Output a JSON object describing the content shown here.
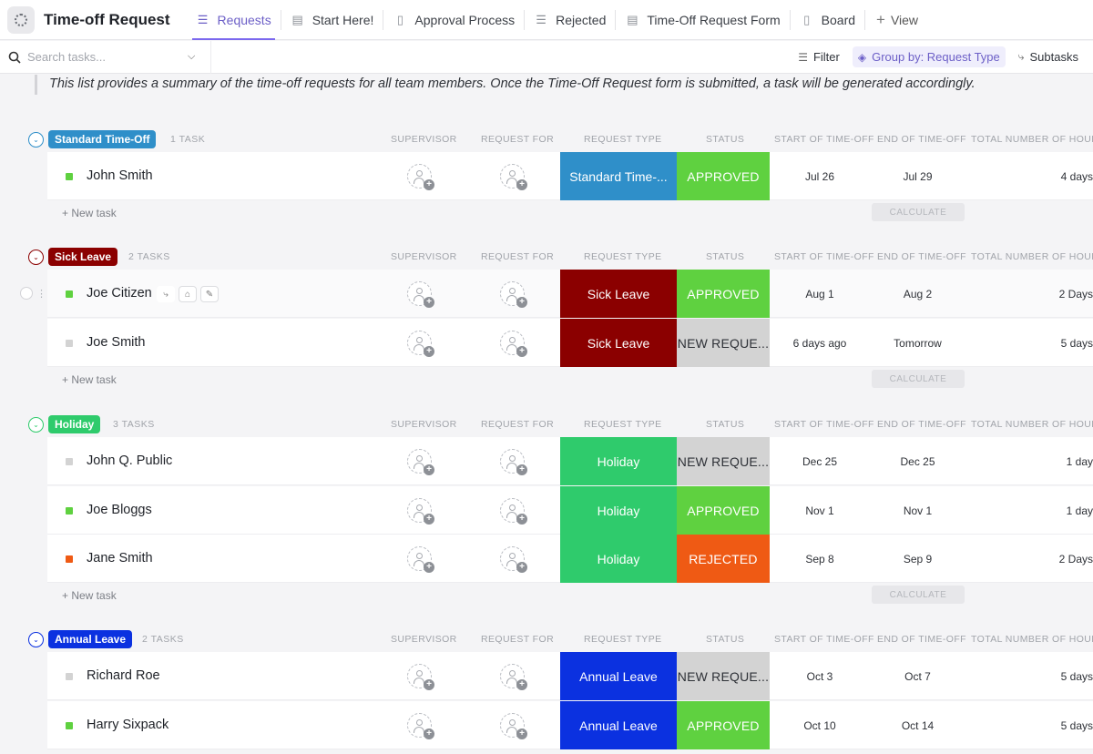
{
  "app": {
    "title": "Time-off Request"
  },
  "tabs": [
    {
      "label": "Requests",
      "icon": "list-icon",
      "active": true
    },
    {
      "label": "Start Here!",
      "icon": "doc-icon",
      "active": false
    },
    {
      "label": "Approval Process",
      "icon": "doc-icon",
      "active": false
    },
    {
      "label": "Rejected",
      "icon": "list-icon",
      "active": false
    },
    {
      "label": "Time-Off Request Form",
      "icon": "form-icon",
      "active": false
    },
    {
      "label": "Board",
      "icon": "board-icon",
      "active": false
    }
  ],
  "add_view_label": "View",
  "toolbar": {
    "search_placeholder": "Search tasks...",
    "filter_label": "Filter",
    "group_label": "Group by: Request Type",
    "subtasks_label": "Subtasks"
  },
  "description": "This list provides a summary of the time-off requests for all team members. Once the Time-Off Request form is submitted, a task will be generated accordingly.",
  "columns": {
    "supervisor": "SUPERVISOR",
    "request_for": "REQUEST FOR",
    "request_type": "REQUEST TYPE",
    "status": "STATUS",
    "start": "START OF TIME-OFF",
    "end": "END OF TIME-OFF",
    "total": "TOTAL NUMBER OF HOURS"
  },
  "new_task_label": "+ New task",
  "calculate_label": "CALCULATE",
  "colors": {
    "standard": "#2f8fc9",
    "sick": "#8b0000",
    "holiday": "#2fcb6c",
    "annual": "#0b31e0",
    "approved": "#5fd140",
    "new_request": "#d3d3d3",
    "rejected": "#ef5a14"
  },
  "groups": [
    {
      "label": "Standard Time-Off",
      "count": "1 TASK",
      "tasks": [
        {
          "name": "John Smith",
          "type": "Standard Time-...",
          "status": "APPROVED",
          "start": "Jul 26",
          "end": "Jul 29",
          "total": "4 days"
        }
      ]
    },
    {
      "label": "Sick Leave",
      "count": "2 TASKS",
      "tasks": [
        {
          "name": "Joe Citizen",
          "type": "Sick Leave",
          "status": "APPROVED",
          "start": "Aug 1",
          "end": "Aug 2",
          "total": "2 Days"
        },
        {
          "name": "Joe Smith",
          "type": "Sick Leave",
          "status": "NEW REQUE...",
          "start": "6 days ago",
          "end": "Tomorrow",
          "total": "5 days"
        }
      ]
    },
    {
      "label": "Holiday",
      "count": "3 TASKS",
      "tasks": [
        {
          "name": "John Q. Public",
          "type": "Holiday",
          "status": "NEW REQUE...",
          "start": "Dec 25",
          "end": "Dec 25",
          "total": "1 day"
        },
        {
          "name": "Joe Bloggs",
          "type": "Holiday",
          "status": "APPROVED",
          "start": "Nov 1",
          "end": "Nov 1",
          "total": "1 day"
        },
        {
          "name": "Jane Smith",
          "type": "Holiday",
          "status": "REJECTED",
          "start": "Sep 8",
          "end": "Sep 9",
          "total": "2 Days"
        }
      ]
    },
    {
      "label": "Annual Leave",
      "count": "2 TASKS",
      "tasks": [
        {
          "name": "Richard Roe",
          "type": "Annual Leave",
          "status": "NEW REQUE...",
          "start": "Oct 3",
          "end": "Oct 7",
          "total": "5 days"
        },
        {
          "name": "Harry Sixpack",
          "type": "Annual Leave",
          "status": "APPROVED",
          "start": "Oct 10",
          "end": "Oct 14",
          "total": "5 days"
        }
      ]
    }
  ]
}
